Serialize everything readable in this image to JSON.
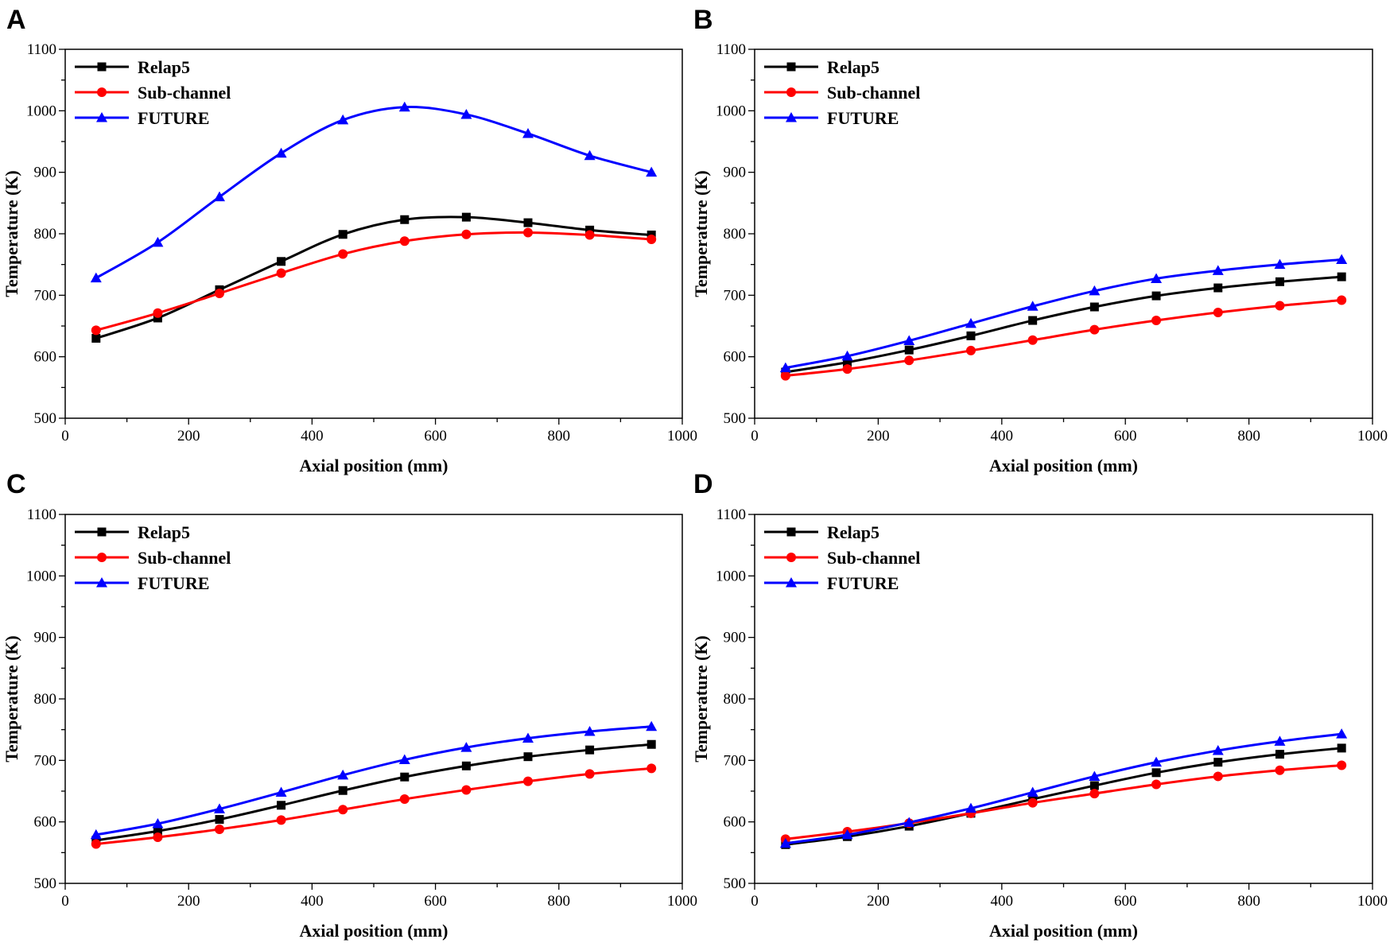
{
  "figure": {
    "colors": {
      "Relap5": "#000000",
      "Sub-channel": "#ff0000",
      "FUTURE": "#0000ff"
    },
    "markers": {
      "Relap5": "square",
      "Sub-channel": "circle",
      "FUTURE": "triangle"
    }
  },
  "chart_data": [
    {
      "panel": "A",
      "type": "line",
      "xlabel": "Axial position (mm)",
      "ylabel": "Temperature (K)",
      "xlim": [
        0,
        1000
      ],
      "ylim": [
        500,
        1100
      ],
      "xticks": [
        0,
        200,
        400,
        600,
        800,
        1000
      ],
      "yticks": [
        500,
        600,
        700,
        800,
        900,
        1000,
        1100
      ],
      "legend_position": "top-left",
      "x": [
        50,
        150,
        250,
        350,
        450,
        550,
        650,
        750,
        850,
        950
      ],
      "series": [
        {
          "name": "Relap5",
          "values": [
            630,
            663,
            709,
            755,
            799,
            823,
            827,
            818,
            806,
            798
          ]
        },
        {
          "name": "Sub-channel",
          "values": [
            643,
            671,
            703,
            736,
            767,
            788,
            799,
            802,
            798,
            791
          ]
        },
        {
          "name": "FUTURE",
          "values": [
            728,
            786,
            860,
            931,
            985,
            1006,
            994,
            963,
            927,
            900
          ]
        }
      ]
    },
    {
      "panel": "B",
      "type": "line",
      "xlabel": "Axial position (mm)",
      "ylabel": "Temperature (K)",
      "xlim": [
        0,
        1000
      ],
      "ylim": [
        500,
        1100
      ],
      "xticks": [
        0,
        200,
        400,
        600,
        800,
        1000
      ],
      "yticks": [
        500,
        600,
        700,
        800,
        900,
        1000,
        1100
      ],
      "legend_position": "top-left",
      "x": [
        50,
        150,
        250,
        350,
        450,
        550,
        650,
        750,
        850,
        950
      ],
      "series": [
        {
          "name": "Relap5",
          "values": [
            575,
            591,
            611,
            634,
            659,
            681,
            699,
            712,
            722,
            730
          ]
        },
        {
          "name": "Sub-channel",
          "values": [
            569,
            580,
            594,
            610,
            627,
            644,
            659,
            672,
            683,
            692
          ]
        },
        {
          "name": "FUTURE",
          "values": [
            582,
            601,
            626,
            654,
            682,
            707,
            727,
            740,
            750,
            758
          ]
        }
      ]
    },
    {
      "panel": "C",
      "type": "line",
      "xlabel": "Axial position (mm)",
      "ylabel": "Temperature (K)",
      "xlim": [
        0,
        1000
      ],
      "ylim": [
        500,
        1100
      ],
      "xticks": [
        0,
        200,
        400,
        600,
        800,
        1000
      ],
      "yticks": [
        500,
        600,
        700,
        800,
        900,
        1000,
        1100
      ],
      "legend_position": "top-left",
      "x": [
        50,
        150,
        250,
        350,
        450,
        550,
        650,
        750,
        850,
        950
      ],
      "series": [
        {
          "name": "Relap5",
          "values": [
            570,
            585,
            604,
            627,
            651,
            673,
            691,
            706,
            717,
            726
          ]
        },
        {
          "name": "Sub-channel",
          "values": [
            564,
            575,
            588,
            603,
            620,
            637,
            652,
            666,
            678,
            687
          ]
        },
        {
          "name": "FUTURE",
          "values": [
            579,
            597,
            621,
            648,
            676,
            701,
            721,
            736,
            747,
            755
          ]
        }
      ]
    },
    {
      "panel": "D",
      "type": "line",
      "xlabel": "Axial position (mm)",
      "ylabel": "Temperature (K)",
      "xlim": [
        0,
        1000
      ],
      "ylim": [
        500,
        1100
      ],
      "xticks": [
        0,
        200,
        400,
        600,
        800,
        1000
      ],
      "yticks": [
        500,
        600,
        700,
        800,
        900,
        1000,
        1100
      ],
      "legend_position": "top-left",
      "x": [
        50,
        150,
        250,
        350,
        450,
        550,
        650,
        750,
        850,
        950
      ],
      "series": [
        {
          "name": "Relap5",
          "values": [
            563,
            576,
            593,
            614,
            637,
            659,
            680,
            697,
            710,
            720
          ]
        },
        {
          "name": "Sub-channel",
          "values": [
            572,
            584,
            598,
            614,
            631,
            646,
            661,
            674,
            684,
            692
          ]
        },
        {
          "name": "FUTURE",
          "values": [
            565,
            579,
            599,
            622,
            648,
            674,
            697,
            716,
            731,
            743
          ]
        }
      ]
    }
  ]
}
